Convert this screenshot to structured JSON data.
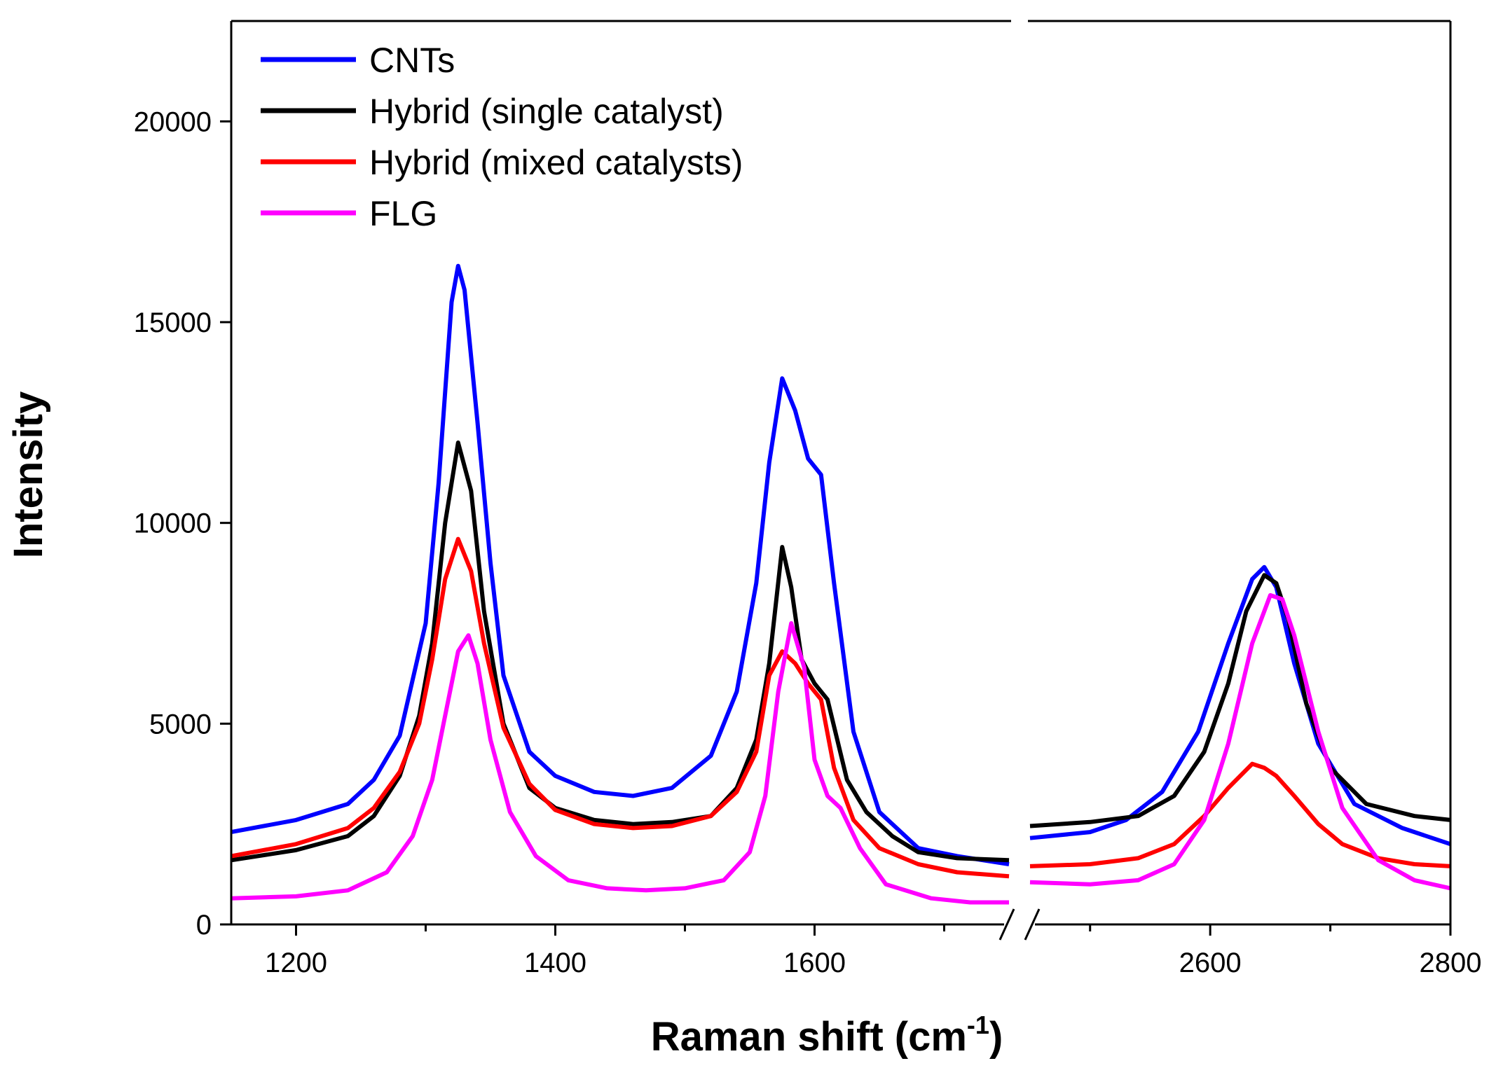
{
  "chart_data": {
    "type": "line",
    "title": "",
    "xlabel": {
      "main": "Raman shift (cm",
      "sup": "-1",
      "close": ")"
    },
    "ylabel": "Intensity",
    "ylim": [
      0,
      22500
    ],
    "yticks": [
      0,
      5000,
      10000,
      15000,
      20000
    ],
    "ytick_labels": [
      "0",
      "5000",
      "10000",
      "15000",
      "20000"
    ],
    "x_segments": [
      {
        "xlim": [
          1150,
          1750
        ],
        "ticks": [
          1200,
          1400,
          1600
        ],
        "tick_labels": [
          "1200",
          "1400",
          "1600"
        ],
        "minor_ticks": [
          1300,
          1500,
          1700
        ]
      },
      {
        "xlim": [
          2450,
          2800
        ],
        "ticks": [
          2600,
          2800
        ],
        "tick_labels": [
          "2600",
          "2800"
        ],
        "minor_ticks": [
          2500,
          2700
        ]
      }
    ],
    "axis_break": true,
    "legend_position": "top-left",
    "series": [
      {
        "name": "CNTs",
        "color": "#0000ff",
        "segments": [
          {
            "x": [
              1150,
              1200,
              1240,
              1260,
              1280,
              1300,
              1310,
              1320,
              1325,
              1330,
              1340,
              1350,
              1360,
              1380,
              1400,
              1430,
              1460,
              1490,
              1520,
              1540,
              1555,
              1565,
              1575,
              1585,
              1595,
              1605,
              1615,
              1630,
              1650,
              1680,
              1710,
              1750
            ],
            "y": [
              2300,
              2600,
              3000,
              3600,
              4700,
              7500,
              11000,
              15500,
              16400,
              15800,
              12500,
              9000,
              6200,
              4300,
              3700,
              3300,
              3200,
              3400,
              4200,
              5800,
              8500,
              11500,
              13600,
              12800,
              11600,
              11200,
              8500,
              4800,
              2800,
              1900,
              1700,
              1500
            ]
          },
          {
            "x": [
              2450,
              2500,
              2530,
              2560,
              2590,
              2615,
              2635,
              2645,
              2655,
              2670,
              2690,
              2720,
              2760,
              2800
            ],
            "y": [
              2150,
              2300,
              2600,
              3300,
              4800,
              7000,
              8600,
              8900,
              8400,
              6500,
              4500,
              3000,
              2400,
              2000
            ]
          }
        ]
      },
      {
        "name": "Hybrid (single catalyst)",
        "color": "#000000",
        "segments": [
          {
            "x": [
              1150,
              1200,
              1240,
              1260,
              1280,
              1295,
              1305,
              1315,
              1325,
              1335,
              1345,
              1360,
              1380,
              1400,
              1430,
              1460,
              1490,
              1520,
              1540,
              1555,
              1565,
              1575,
              1582,
              1590,
              1600,
              1610,
              1625,
              1640,
              1660,
              1680,
              1710,
              1750
            ],
            "y": [
              1600,
              1850,
              2200,
              2700,
              3700,
              5200,
              7000,
              10000,
              12000,
              10800,
              7800,
              5000,
              3400,
              2900,
              2600,
              2500,
              2550,
              2700,
              3400,
              4600,
              6500,
              9400,
              8400,
              6600,
              6000,
              5600,
              3600,
              2800,
              2200,
              1800,
              1650,
              1600
            ]
          },
          {
            "x": [
              2450,
              2500,
              2540,
              2570,
              2595,
              2615,
              2630,
              2645,
              2655,
              2665,
              2680,
              2700,
              2730,
              2770,
              2800
            ],
            "y": [
              2450,
              2550,
              2700,
              3200,
              4300,
              6000,
              7800,
              8700,
              8500,
              7600,
              5500,
              3900,
              3000,
              2700,
              2600
            ]
          }
        ]
      },
      {
        "name": "Hybrid (mixed catalysts)",
        "color": "#ff0000",
        "segments": [
          {
            "x": [
              1150,
              1200,
              1240,
              1260,
              1280,
              1295,
              1305,
              1315,
              1325,
              1335,
              1345,
              1360,
              1380,
              1400,
              1430,
              1460,
              1490,
              1520,
              1540,
              1555,
              1565,
              1575,
              1585,
              1595,
              1605,
              1615,
              1630,
              1650,
              1680,
              1710,
              1750
            ],
            "y": [
              1700,
              2000,
              2400,
              2900,
              3800,
              5000,
              6600,
              8600,
              9600,
              8800,
              7000,
              4900,
              3500,
              2850,
              2500,
              2400,
              2450,
              2700,
              3300,
              4300,
              6200,
              6800,
              6500,
              6000,
              5600,
              3900,
              2600,
              1900,
              1500,
              1300,
              1200
            ]
          },
          {
            "x": [
              2450,
              2500,
              2540,
              2570,
              2595,
              2615,
              2635,
              2645,
              2655,
              2670,
              2690,
              2710,
              2740,
              2770,
              2800
            ],
            "y": [
              1450,
              1500,
              1650,
              2000,
              2700,
              3400,
              4000,
              3900,
              3700,
              3200,
              2500,
              2000,
              1650,
              1500,
              1450
            ]
          }
        ]
      },
      {
        "name": "FLG",
        "color": "#ff00ff",
        "segments": [
          {
            "x": [
              1150,
              1200,
              1240,
              1270,
              1290,
              1305,
              1315,
              1325,
              1333,
              1340,
              1350,
              1365,
              1385,
              1410,
              1440,
              1470,
              1500,
              1530,
              1550,
              1562,
              1572,
              1582,
              1592,
              1600,
              1610,
              1620,
              1635,
              1655,
              1690,
              1720,
              1750
            ],
            "y": [
              650,
              700,
              850,
              1300,
              2200,
              3600,
              5200,
              6800,
              7200,
              6500,
              4600,
              2800,
              1700,
              1100,
              900,
              850,
              900,
              1100,
              1800,
              3200,
              5800,
              7500,
              6400,
              4100,
              3200,
              2900,
              1900,
              1000,
              650,
              550,
              550
            ]
          },
          {
            "x": [
              2450,
              2500,
              2540,
              2570,
              2595,
              2615,
              2635,
              2650,
              2660,
              2670,
              2690,
              2710,
              2740,
              2770,
              2800
            ],
            "y": [
              1050,
              1000,
              1100,
              1500,
              2600,
              4500,
              7000,
              8200,
              8100,
              7200,
              4800,
              2900,
              1600,
              1100,
              900
            ]
          }
        ]
      }
    ]
  }
}
